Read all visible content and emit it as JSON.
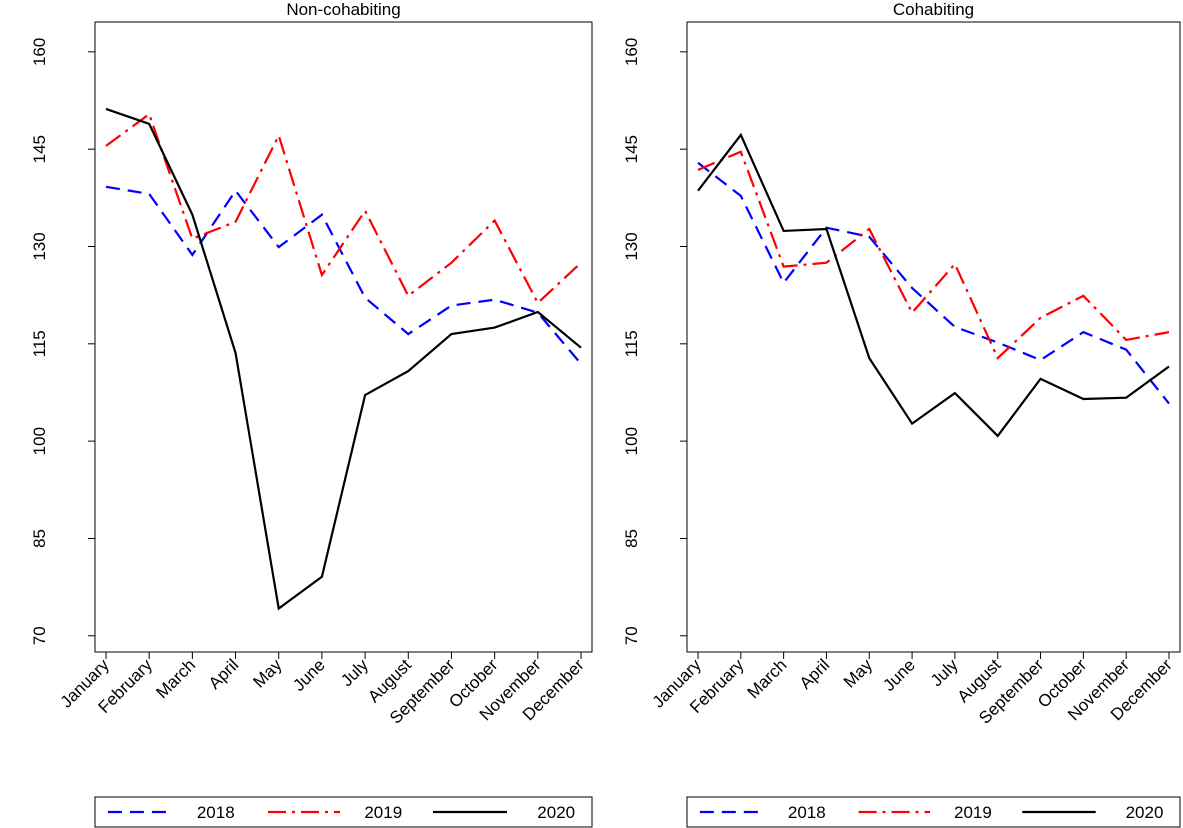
{
  "chart_data": [
    {
      "type": "line",
      "title": "Non-cohabiting",
      "categories": [
        "January",
        "February",
        "March",
        "April",
        "May",
        "June",
        "July",
        "August",
        "September",
        "October",
        "November",
        "December"
      ],
      "ylim": [
        67.5,
        164.6
      ],
      "yticks": [
        70,
        85,
        100,
        115,
        130,
        145,
        160
      ],
      "legend": "bottom",
      "series": [
        {
          "name": "2018",
          "color": "#0000ff",
          "style": "dash",
          "values": [
            139.2,
            138.1,
            128.7,
            138.6,
            129.9,
            134.9,
            122.1,
            116.5,
            120.9,
            121.8,
            119.8,
            111.9
          ]
        },
        {
          "name": "2019",
          "color": "#ff0000",
          "style": "dashdot",
          "values": [
            145.5,
            150.4,
            131.2,
            133.8,
            147.1,
            125.6,
            135.5,
            122.4,
            127.5,
            134.0,
            121.3,
            127.5
          ]
        },
        {
          "name": "2020",
          "color": "#000000",
          "style": "solid",
          "values": [
            151.2,
            148.9,
            134.9,
            113.6,
            74.2,
            79.1,
            107.1,
            110.8,
            116.5,
            117.5,
            119.9,
            114.4
          ]
        }
      ]
    },
    {
      "type": "line",
      "title": "Cohabiting",
      "categories": [
        "January",
        "February",
        "March",
        "April",
        "May",
        "June",
        "July",
        "August",
        "September",
        "October",
        "November",
        "December"
      ],
      "ylim": [
        67.5,
        164.6
      ],
      "yticks": [
        70,
        85,
        100,
        115,
        130,
        145,
        160
      ],
      "legend": "bottom",
      "series": [
        {
          "name": "2018",
          "color": "#0000ff",
          "style": "dash",
          "values": [
            142.9,
            137.8,
            124.4,
            132.9,
            131.5,
            123.6,
            117.6,
            115.2,
            112.5,
            116.8,
            114.1,
            105.8
          ]
        },
        {
          "name": "2019",
          "color": "#ff0000",
          "style": "dashdot",
          "values": [
            141.8,
            144.6,
            126.9,
            127.5,
            132.7,
            119.8,
            127.3,
            112.8,
            119.0,
            122.4,
            115.6,
            116.8
          ]
        },
        {
          "name": "2020",
          "color": "#000000",
          "style": "solid",
          "values": [
            138.6,
            147.2,
            132.4,
            132.7,
            112.8,
            102.7,
            107.4,
            100.8,
            109.6,
            106.5,
            106.7,
            111.5
          ]
        }
      ]
    }
  ]
}
